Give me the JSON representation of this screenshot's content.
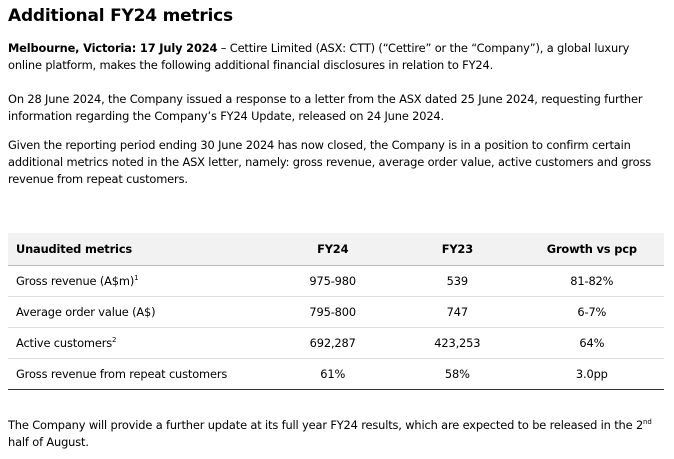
{
  "title": "Additional FY24 metrics",
  "para1_lead": "Melbourne, Victoria: 17 July 2024",
  "para1_rest": " – Cettire Limited (ASX: CTT) (“Cettire” or the “Company”), a global luxury online platform, makes the following additional financial disclosures in relation to FY24.",
  "para2": "On 28 June 2024, the Company issued a response to a letter from the ASX dated 25 June 2024, requesting further information regarding the Company’s FY24 Update, released on 24 June 2024.",
  "para3": "Given the reporting period ending 30 June 2024 has now closed, the Company is in a position to confirm certain additional metrics noted in the ASX letter, namely: gross revenue, average order value, active customers and gross revenue from repeat customers.",
  "table": {
    "headers": [
      "Unaudited metrics",
      "FY24",
      "FY23",
      "Growth vs pcp"
    ],
    "rows": [
      {
        "metric": "Gross revenue (A$m)",
        "sup": "1",
        "fy24": "975-980",
        "fy23": "539",
        "growth": "81-82%"
      },
      {
        "metric": "Average order value (A$)",
        "sup": "",
        "fy24": "795-800",
        "fy23": "747",
        "growth": "6-7%"
      },
      {
        "metric": "Active customers",
        "sup": "2",
        "fy24": "692,287",
        "fy23": "423,253",
        "growth": "64%"
      },
      {
        "metric": "Gross revenue from repeat customers",
        "sup": "",
        "fy24": "61%",
        "fy23": "58%",
        "growth": "3.0pp"
      }
    ]
  },
  "para4_a": "The Company will provide a further update at its full year FY24 results, which are expected to be released in the 2",
  "para4_sup": "nd",
  "para4_b": " half of August."
}
